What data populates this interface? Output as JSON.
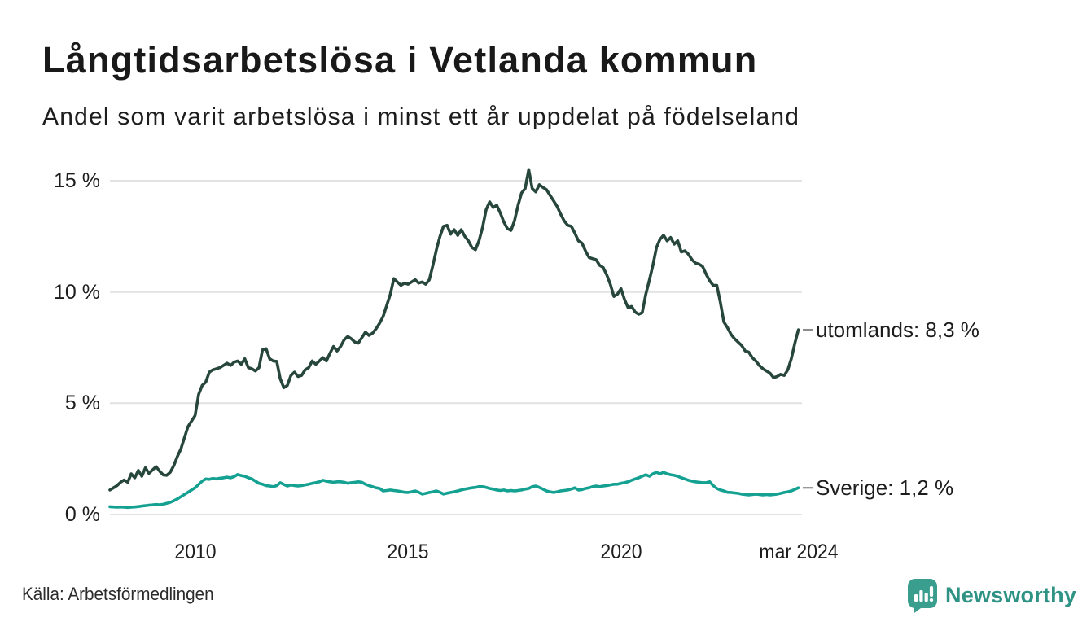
{
  "title": "Långtidsarbetslösa i Vetlanda kommun",
  "subtitle": "Andel som varit arbetslösa i minst ett år uppdelat på födelseland",
  "source": "Källa: Arbetsförmedlingen",
  "brand": {
    "name": "Newsworthy",
    "icon": "newsworthy-chart-bubble-icon",
    "text_color": "#2e9384",
    "icon_color": "#3a9e8f"
  },
  "colors": {
    "utomlands_line": "#27463c",
    "sverige_line": "#14a191",
    "grid": "#e2e2e2",
    "connector_dash": "#8c8c8c",
    "axis_text": "#1d1d1d"
  },
  "chart_data": {
    "type": "line",
    "title": "Långtidsarbetslösa i Vetlanda kommun",
    "subtitle": "Andel som varit arbetslösa i minst ett år uppdelat på födelseland",
    "x_unit": "monthly, Jan 2008 – Mar 2024 (fractional years)",
    "x_start": 2008.0,
    "x_end": 2024.25,
    "ylim": [
      0,
      16.5
    ],
    "grid": "horizontal-only",
    "legend_position": "right-end-labels",
    "y_ticks": [
      {
        "v": 0,
        "label": "0 %"
      },
      {
        "v": 5,
        "label": "5 %"
      },
      {
        "v": 10,
        "label": "10 %"
      },
      {
        "v": 15,
        "label": "15 %"
      }
    ],
    "x_ticks": [
      {
        "t": 2010.0,
        "label": "2010"
      },
      {
        "t": 2015.0,
        "label": "2015"
      },
      {
        "t": 2020.0,
        "label": "2020"
      },
      {
        "t": 2024.1667,
        "label": "mar 2024"
      }
    ],
    "series": [
      {
        "name": "utomlands",
        "label": "utomlands: 8,3 %",
        "end_value": 8.3,
        "color": "#27463c",
        "values": [
          1.1,
          1.2,
          1.3,
          1.45,
          1.55,
          1.45,
          1.83,
          1.65,
          1.98,
          1.72,
          2.1,
          1.85,
          2.0,
          2.15,
          1.95,
          1.78,
          1.76,
          1.9,
          2.2,
          2.6,
          2.95,
          3.45,
          3.95,
          4.2,
          4.45,
          5.4,
          5.8,
          5.95,
          6.4,
          6.5,
          6.55,
          6.6,
          6.7,
          6.8,
          6.7,
          6.85,
          6.9,
          6.75,
          7.0,
          6.6,
          6.55,
          6.45,
          6.6,
          7.4,
          7.45,
          7.0,
          6.9,
          6.88,
          6.1,
          5.7,
          5.8,
          6.25,
          6.4,
          6.2,
          6.25,
          6.5,
          6.6,
          6.9,
          6.75,
          6.9,
          7.05,
          6.9,
          7.25,
          7.55,
          7.35,
          7.55,
          7.85,
          8.0,
          7.9,
          7.75,
          7.7,
          7.95,
          8.2,
          8.05,
          8.15,
          8.35,
          8.6,
          8.9,
          9.4,
          9.9,
          10.6,
          10.45,
          10.3,
          10.4,
          10.35,
          10.45,
          10.55,
          10.4,
          10.45,
          10.35,
          10.55,
          11.2,
          11.9,
          12.5,
          12.95,
          13.0,
          12.6,
          12.8,
          12.55,
          12.8,
          12.5,
          12.3,
          12.0,
          11.9,
          12.3,
          12.9,
          13.7,
          14.05,
          13.8,
          13.9,
          13.55,
          13.15,
          12.85,
          12.77,
          13.2,
          13.9,
          14.45,
          14.65,
          15.5,
          14.65,
          14.5,
          14.82,
          14.7,
          14.6,
          14.35,
          14.1,
          13.85,
          13.5,
          13.2,
          13.0,
          12.95,
          12.65,
          12.3,
          12.2,
          11.85,
          11.55,
          11.5,
          11.45,
          11.2,
          11.1,
          10.76,
          10.35,
          9.8,
          9.9,
          10.15,
          9.66,
          9.3,
          9.35,
          9.1,
          9.0,
          9.07,
          9.9,
          10.54,
          11.2,
          12.0,
          12.37,
          12.55,
          12.3,
          12.45,
          12.15,
          12.3,
          11.8,
          11.85,
          11.7,
          11.45,
          11.3,
          11.25,
          11.15,
          10.8,
          10.5,
          10.3,
          10.3,
          9.55,
          8.65,
          8.4,
          8.1,
          7.9,
          7.75,
          7.6,
          7.35,
          7.3,
          7.05,
          6.9,
          6.7,
          6.55,
          6.45,
          6.35,
          6.15,
          6.2,
          6.3,
          6.25,
          6.5,
          7.0,
          7.7,
          8.3
        ]
      },
      {
        "name": "Sverige",
        "label": "Sverige: 1,2 %",
        "end_value": 1.2,
        "color": "#14a191",
        "values": [
          0.35,
          0.34,
          0.33,
          0.34,
          0.33,
          0.32,
          0.33,
          0.34,
          0.36,
          0.38,
          0.4,
          0.42,
          0.43,
          0.45,
          0.44,
          0.46,
          0.5,
          0.55,
          0.62,
          0.7,
          0.8,
          0.9,
          1.0,
          1.1,
          1.2,
          1.35,
          1.5,
          1.6,
          1.58,
          1.62,
          1.6,
          1.63,
          1.65,
          1.68,
          1.65,
          1.7,
          1.8,
          1.75,
          1.72,
          1.65,
          1.6,
          1.5,
          1.4,
          1.36,
          1.3,
          1.28,
          1.25,
          1.3,
          1.43,
          1.35,
          1.28,
          1.33,
          1.3,
          1.28,
          1.3,
          1.33,
          1.36,
          1.4,
          1.43,
          1.47,
          1.54,
          1.5,
          1.47,
          1.45,
          1.47,
          1.47,
          1.45,
          1.4,
          1.43,
          1.45,
          1.47,
          1.45,
          1.36,
          1.3,
          1.25,
          1.2,
          1.17,
          1.06,
          1.08,
          1.1,
          1.08,
          1.06,
          1.03,
          1.0,
          0.99,
          1.02,
          1.06,
          1.0,
          0.92,
          0.95,
          0.99,
          1.02,
          1.06,
          1.0,
          0.92,
          0.96,
          0.99,
          1.02,
          1.06,
          1.1,
          1.14,
          1.17,
          1.2,
          1.22,
          1.25,
          1.25,
          1.22,
          1.17,
          1.14,
          1.1,
          1.08,
          1.1,
          1.06,
          1.08,
          1.06,
          1.08,
          1.1,
          1.14,
          1.17,
          1.25,
          1.28,
          1.22,
          1.14,
          1.06,
          1.02,
          0.99,
          1.02,
          1.06,
          1.08,
          1.1,
          1.14,
          1.2,
          1.1,
          1.12,
          1.17,
          1.2,
          1.25,
          1.28,
          1.25,
          1.28,
          1.3,
          1.33,
          1.36,
          1.36,
          1.4,
          1.43,
          1.47,
          1.54,
          1.6,
          1.65,
          1.72,
          1.79,
          1.72,
          1.83,
          1.9,
          1.83,
          1.9,
          1.83,
          1.79,
          1.76,
          1.72,
          1.65,
          1.6,
          1.54,
          1.5,
          1.47,
          1.45,
          1.43,
          1.43,
          1.47,
          1.3,
          1.17,
          1.1,
          1.06,
          1.0,
          0.99,
          0.97,
          0.95,
          0.92,
          0.9,
          0.88,
          0.9,
          0.92,
          0.9,
          0.88,
          0.9,
          0.88,
          0.9,
          0.92,
          0.95,
          0.99,
          1.02,
          1.06,
          1.13,
          1.2
        ]
      }
    ]
  }
}
